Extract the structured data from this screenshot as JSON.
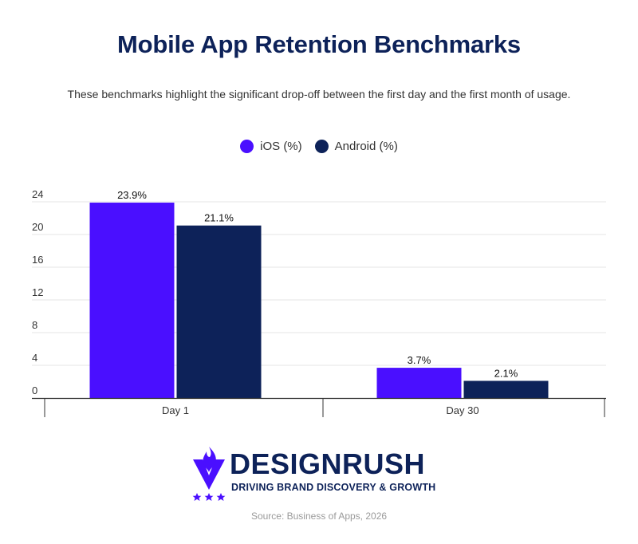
{
  "header": {
    "title": "Mobile App Retention Benchmarks",
    "subtitle": "These benchmarks highlight the significant drop-off between the first day and the first month of usage."
  },
  "chart_data": {
    "type": "bar",
    "categories": [
      "Day 1",
      "Day 30"
    ],
    "series": [
      {
        "name": "iOS (%)",
        "values": [
          23.9,
          3.7
        ],
        "labels": [
          "23.9%",
          "3.7%"
        ],
        "color": "#4a0fff"
      },
      {
        "name": "Android (%)",
        "values": [
          21.1,
          2.1
        ],
        "labels": [
          "21.1%",
          "2.1%"
        ],
        "color": "#0d2259"
      }
    ],
    "yticks": [
      "0",
      "4",
      "8",
      "12",
      "16",
      "20",
      "24"
    ],
    "ylim": [
      0,
      24
    ],
    "grid": true,
    "legend_position": "top-center"
  },
  "branding": {
    "name": "DESIGNRUSH",
    "tagline": "DRIVING BRAND DISCOVERY & GROWTH",
    "logo_icon": "designrush-flame-shield-icon",
    "accent_color": "#4a0fff",
    "brand_color": "#0d2259"
  },
  "footer": {
    "source": "Source: Business of Apps, 2026"
  }
}
